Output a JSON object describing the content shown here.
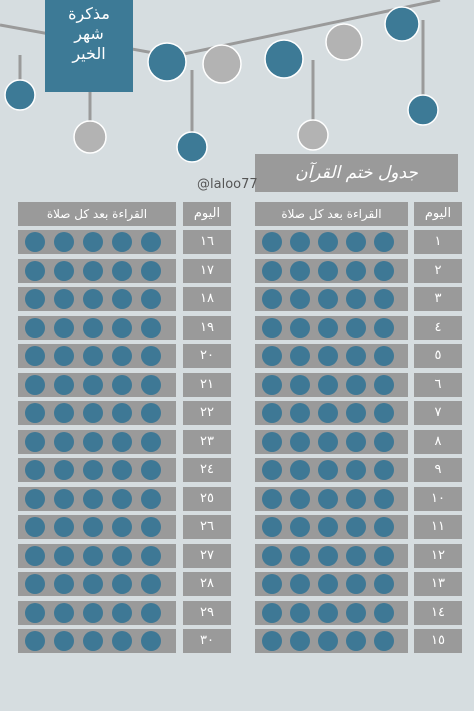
{
  "banner_lines": [
    "مذكرة",
    "شهر",
    "الخير"
  ],
  "title": "جدول ختم القرآن",
  "handle": "@laloo77",
  "header_day": "اليوم",
  "header_reading": "القراءة بعد كل صلاة",
  "right_days": [
    "١",
    "٢",
    "٣",
    "٤",
    "٥",
    "٦",
    "٧",
    "٨",
    "٩",
    "١٠",
    "١١",
    "١٢",
    "١٣",
    "١٤",
    "١٥"
  ],
  "left_days": [
    "١٦",
    "١٧",
    "١٨",
    "١٩",
    "٢٠",
    "٢١",
    "٢٢",
    "٢٣",
    "٢٤",
    "٢٥",
    "٢٦",
    "٢٧",
    "٢٨",
    "٢٩",
    "٣٠"
  ],
  "prayers_per_day": 5,
  "colors": {
    "background": "#d6dde0",
    "banner": "#3d7a96",
    "cell": "#9a9a9a",
    "dot": "#3e7895",
    "bead_gray": "#b3b3b3"
  }
}
